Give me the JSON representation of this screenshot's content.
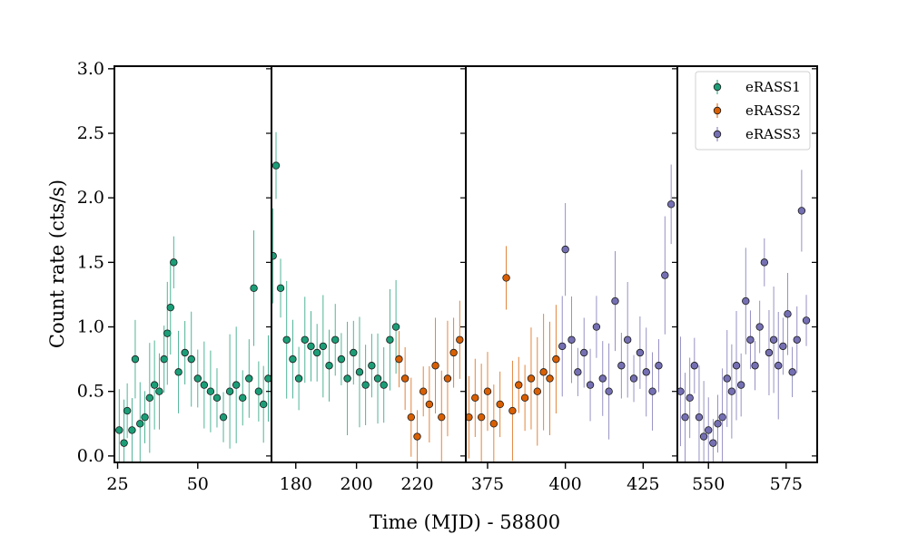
{
  "chart_data": {
    "type": "scatter",
    "title": "",
    "xlabel": "Time (MJD) - 58800",
    "ylabel": "Count rate (cts/s)",
    "ylim": [
      -0.05,
      3.02
    ],
    "yticks": [
      0.0,
      0.5,
      1.0,
      1.5,
      2.0,
      2.5,
      3.0
    ],
    "ytick_labels": [
      "0.0",
      "0.5",
      "1.0",
      "1.5",
      "2.0",
      "2.5",
      "3.0"
    ],
    "grid": false,
    "legend_position": "top-right",
    "errorbars": true,
    "panels": [
      {
        "xlim": [
          24,
          73
        ],
        "xticks": [
          25,
          50
        ],
        "xtick_labels": [
          "25",
          "50"
        ]
      },
      {
        "xlim": [
          172,
          236
        ],
        "xticks": [
          180,
          200,
          220
        ],
        "xtick_labels": [
          "180",
          "200",
          "220"
        ]
      },
      {
        "xlim": [
          368,
          436
        ],
        "xticks": [
          375,
          400,
          425
        ],
        "xtick_labels": [
          "375",
          "400",
          "425"
        ]
      },
      {
        "xlim": [
          540,
          585
        ],
        "xticks": [
          550,
          575
        ],
        "xtick_labels": [
          "550",
          "575"
        ]
      }
    ],
    "series": [
      {
        "name": "eRASS1",
        "color": "#1b9e77",
        "shape": [
          {
            "x": 25.5,
            "y": 0.2
          },
          {
            "x": 27,
            "y": 0.1
          },
          {
            "x": 28,
            "y": 0.35
          },
          {
            "x": 29.5,
            "y": 0.2
          },
          {
            "x": 30.5,
            "y": 0.75
          },
          {
            "x": 32,
            "y": 0.25
          },
          {
            "x": 33.5,
            "y": 0.3
          },
          {
            "x": 35,
            "y": 0.45
          },
          {
            "x": 36.5,
            "y": 0.55
          },
          {
            "x": 38,
            "y": 0.5
          },
          {
            "x": 39.5,
            "y": 0.75
          },
          {
            "x": 40.5,
            "y": 0.95
          },
          {
            "x": 41.5,
            "y": 1.15
          },
          {
            "x": 42.5,
            "y": 1.5
          },
          {
            "x": 44,
            "y": 0.65
          },
          {
            "x": 46,
            "y": 0.8
          },
          {
            "x": 48,
            "y": 0.75
          },
          {
            "x": 50,
            "y": 0.6
          },
          {
            "x": 52,
            "y": 0.55
          },
          {
            "x": 54,
            "y": 0.5
          },
          {
            "x": 56,
            "y": 0.45
          },
          {
            "x": 58,
            "y": 0.3
          },
          {
            "x": 60,
            "y": 0.5
          },
          {
            "x": 62,
            "y": 0.55
          },
          {
            "x": 64,
            "y": 0.45
          },
          {
            "x": 66,
            "y": 0.6
          },
          {
            "x": 67.5,
            "y": 1.3
          },
          {
            "x": 69,
            "y": 0.5
          },
          {
            "x": 70.5,
            "y": 0.4
          },
          {
            "x": 72,
            "y": 0.6
          },
          {
            "x": 172.5,
            "y": 1.55
          },
          {
            "x": 173.5,
            "y": 2.25
          },
          {
            "x": 175,
            "y": 1.3
          },
          {
            "x": 177,
            "y": 0.9
          },
          {
            "x": 179,
            "y": 0.75
          },
          {
            "x": 181,
            "y": 0.6
          },
          {
            "x": 183,
            "y": 0.9
          },
          {
            "x": 185,
            "y": 0.85
          },
          {
            "x": 187,
            "y": 0.8
          },
          {
            "x": 189,
            "y": 0.85
          },
          {
            "x": 191,
            "y": 0.7
          },
          {
            "x": 193,
            "y": 0.9
          },
          {
            "x": 195,
            "y": 0.75
          },
          {
            "x": 197,
            "y": 0.6
          },
          {
            "x": 199,
            "y": 0.8
          },
          {
            "x": 201,
            "y": 0.65
          },
          {
            "x": 203,
            "y": 0.55
          },
          {
            "x": 205,
            "y": 0.7
          },
          {
            "x": 207,
            "y": 0.6
          },
          {
            "x": 209,
            "y": 0.55
          },
          {
            "x": 211,
            "y": 0.9
          },
          {
            "x": 213,
            "y": 1.0
          }
        ]
      },
      {
        "name": "eRASS2",
        "color": "#d95f02",
        "shape": [
          {
            "x": 214,
            "y": 0.75
          },
          {
            "x": 216,
            "y": 0.6
          },
          {
            "x": 218,
            "y": 0.3
          },
          {
            "x": 220,
            "y": 0.15
          },
          {
            "x": 222,
            "y": 0.5
          },
          {
            "x": 224,
            "y": 0.4
          },
          {
            "x": 226,
            "y": 0.7
          },
          {
            "x": 228,
            "y": 0.3
          },
          {
            "x": 230,
            "y": 0.6
          },
          {
            "x": 232,
            "y": 0.8
          },
          {
            "x": 234,
            "y": 0.9
          },
          {
            "x": 369,
            "y": 0.3
          },
          {
            "x": 371,
            "y": 0.45
          },
          {
            "x": 373,
            "y": 0.3
          },
          {
            "x": 375,
            "y": 0.5
          },
          {
            "x": 377,
            "y": 0.25
          },
          {
            "x": 379,
            "y": 0.4
          },
          {
            "x": 381,
            "y": 1.38
          },
          {
            "x": 383,
            "y": 0.35
          },
          {
            "x": 385,
            "y": 0.55
          },
          {
            "x": 387,
            "y": 0.45
          },
          {
            "x": 389,
            "y": 0.6
          },
          {
            "x": 391,
            "y": 0.5
          },
          {
            "x": 393,
            "y": 0.65
          },
          {
            "x": 395,
            "y": 0.6
          },
          {
            "x": 397,
            "y": 0.75
          }
        ]
      },
      {
        "name": "eRASS3",
        "color": "#7570b3",
        "shape": [
          {
            "x": 399,
            "y": 0.85
          },
          {
            "x": 400,
            "y": 1.6
          },
          {
            "x": 402,
            "y": 0.9
          },
          {
            "x": 404,
            "y": 0.65
          },
          {
            "x": 406,
            "y": 0.8
          },
          {
            "x": 408,
            "y": 0.55
          },
          {
            "x": 410,
            "y": 1.0
          },
          {
            "x": 412,
            "y": 0.6
          },
          {
            "x": 414,
            "y": 0.5
          },
          {
            "x": 416,
            "y": 1.2
          },
          {
            "x": 418,
            "y": 0.7
          },
          {
            "x": 420,
            "y": 0.9
          },
          {
            "x": 422,
            "y": 0.6
          },
          {
            "x": 424,
            "y": 0.8
          },
          {
            "x": 426,
            "y": 0.65
          },
          {
            "x": 428,
            "y": 0.5
          },
          {
            "x": 430,
            "y": 0.7
          },
          {
            "x": 432,
            "y": 1.4
          },
          {
            "x": 434,
            "y": 1.95
          },
          {
            "x": 541,
            "y": 0.5
          },
          {
            "x": 542.5,
            "y": 0.3
          },
          {
            "x": 544,
            "y": 0.45
          },
          {
            "x": 545.5,
            "y": 0.7
          },
          {
            "x": 547,
            "y": 0.3
          },
          {
            "x": 548.5,
            "y": 0.15
          },
          {
            "x": 550,
            "y": 0.2
          },
          {
            "x": 551.5,
            "y": 0.1
          },
          {
            "x": 553,
            "y": 0.25
          },
          {
            "x": 554.5,
            "y": 0.3
          },
          {
            "x": 556,
            "y": 0.6
          },
          {
            "x": 557.5,
            "y": 0.5
          },
          {
            "x": 559,
            "y": 0.7
          },
          {
            "x": 560.5,
            "y": 0.55
          },
          {
            "x": 562,
            "y": 1.2
          },
          {
            "x": 563.5,
            "y": 0.9
          },
          {
            "x": 565,
            "y": 0.7
          },
          {
            "x": 566.5,
            "y": 1.0
          },
          {
            "x": 568,
            "y": 1.5
          },
          {
            "x": 569.5,
            "y": 0.8
          },
          {
            "x": 571,
            "y": 0.9
          },
          {
            "x": 572.5,
            "y": 0.7
          },
          {
            "x": 574,
            "y": 0.85
          },
          {
            "x": 575.5,
            "y": 1.1
          },
          {
            "x": 577,
            "y": 0.65
          },
          {
            "x": 578.5,
            "y": 0.9
          },
          {
            "x": 580,
            "y": 1.9
          },
          {
            "x": 581.5,
            "y": 1.05
          }
        ]
      }
    ]
  }
}
